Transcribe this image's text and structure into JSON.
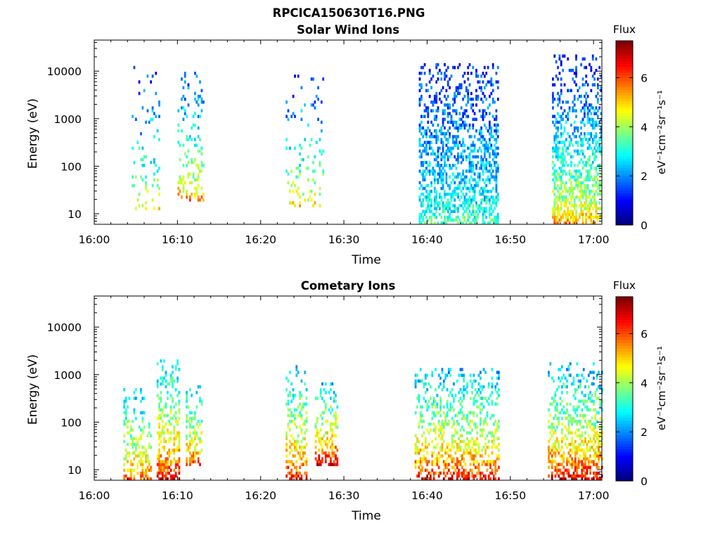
{
  "figure": {
    "title": "RPCICA150630T16.PNG"
  },
  "colormap": "jet",
  "chart_data": [
    {
      "type": "heatmap",
      "title": "Solar Wind Ions",
      "xlabel": "Time",
      "ylabel": "Energy (eV)",
      "xlim": [
        "16:00",
        "17:01"
      ],
      "ylim": [
        6,
        45000
      ],
      "yscale": "log",
      "xticks": [
        "16:00",
        "16:10",
        "16:20",
        "16:30",
        "16:40",
        "16:50",
        "17:00"
      ],
      "yticks": [
        10,
        100,
        1000,
        10000
      ],
      "ytick_labels": [
        "10",
        "100",
        "1000",
        "10000"
      ],
      "colorbar": {
        "label": "Flux",
        "unit": "eV⁻¹cm⁻²sr⁻¹s⁻¹",
        "range": [
          0,
          7.5
        ],
        "ticks": [
          0,
          2,
          4,
          6
        ],
        "tick_labels": [
          "0",
          "2",
          "4",
          "6"
        ]
      },
      "features": [
        {
          "t0": "16:04.3",
          "t1": "16:07.8",
          "e_low": 12,
          "e_high": 14000,
          "flux_low_energy": 5.0,
          "flux_high_energy": 1.2,
          "density": 0.12
        },
        {
          "t0": "16:10.0",
          "t1": "16:13.0",
          "e_low": 17,
          "e_high": 9000,
          "flux_low_energy": 5.8,
          "flux_high_energy": 1.5,
          "density": 0.25
        },
        {
          "t0": "16:23.0",
          "t1": "16:27.5",
          "e_low": 13,
          "e_high": 8000,
          "flux_low_energy": 5.2,
          "flux_high_energy": 1.3,
          "density": 0.15
        },
        {
          "t0": "16:39.0",
          "t1": "16:48.5",
          "e_low": 6,
          "e_high": 14000,
          "flux_low_energy": 3.5,
          "flux_high_energy": 1.2,
          "density": 0.55
        },
        {
          "t0": "16:55.0",
          "t1": "17:01.0",
          "e_low": 6,
          "e_high": 22000,
          "flux_low_energy": 5.5,
          "flux_high_energy": 1.0,
          "density": 0.6
        }
      ]
    },
    {
      "type": "heatmap",
      "title": "Cometary Ions",
      "xlabel": "Time",
      "ylabel": "Energy (eV)",
      "xlim": [
        "16:00",
        "17:01"
      ],
      "ylim": [
        6,
        45000
      ],
      "yscale": "log",
      "xticks": [
        "16:00",
        "16:10",
        "16:20",
        "16:30",
        "16:40",
        "16:50",
        "17:00"
      ],
      "yticks": [
        10,
        100,
        1000,
        10000
      ],
      "ytick_labels": [
        "10",
        "100",
        "1000",
        "10000"
      ],
      "colorbar": {
        "label": "Flux",
        "unit": "eV⁻¹cm⁻²sr⁻¹s⁻¹",
        "range": [
          0,
          7.5
        ],
        "ticks": [
          0,
          2,
          4,
          6
        ],
        "tick_labels": [
          "0",
          "2",
          "4",
          "6"
        ]
      },
      "features": [
        {
          "t0": "16:03.5",
          "t1": "16:06.8",
          "e_low": 6,
          "e_high": 500,
          "flux_low_energy": 6.0,
          "flux_high_energy": 2.5,
          "density": 0.45
        },
        {
          "t0": "16:07.5",
          "t1": "16:10.2",
          "e_low": 6,
          "e_high": 2000,
          "flux_low_energy": 7.0,
          "flux_high_energy": 2.5,
          "density": 0.55
        },
        {
          "t0": "16:11.0",
          "t1": "16:12.8",
          "e_low": 12,
          "e_high": 650,
          "flux_low_energy": 6.2,
          "flux_high_energy": 2.5,
          "density": 0.5
        },
        {
          "t0": "16:23.0",
          "t1": "16:25.5",
          "e_low": 6,
          "e_high": 1500,
          "flux_low_energy": 6.8,
          "flux_high_energy": 2.5,
          "density": 0.45
        },
        {
          "t0": "16:26.5",
          "t1": "16:29.2",
          "e_low": 12,
          "e_high": 650,
          "flux_low_energy": 7.2,
          "flux_high_energy": 2.5,
          "density": 0.5
        },
        {
          "t0": "16:38.5",
          "t1": "16:48.7",
          "e_low": 6,
          "e_high": 1300,
          "flux_low_energy": 6.8,
          "flux_high_energy": 2.3,
          "density": 0.5
        },
        {
          "t0": "16:54.5",
          "t1": "17:01.0",
          "e_low": 6,
          "e_high": 1600,
          "flux_low_energy": 7.0,
          "flux_high_energy": 2.3,
          "density": 0.55
        }
      ]
    }
  ]
}
